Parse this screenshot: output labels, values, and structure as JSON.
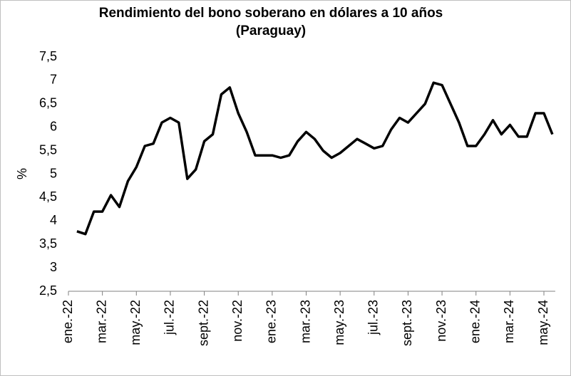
{
  "chart_data": {
    "type": "line",
    "title": [
      "Rendimiento del bono soberano en dólares a 10 años",
      "(Paraguay)"
    ],
    "y_label": "%",
    "categories": [
      "ene.-22",
      null,
      null,
      null,
      "mar.-22",
      null,
      null,
      null,
      "may.-22",
      null,
      null,
      null,
      "jul.-22",
      null,
      null,
      null,
      "sept.-22",
      null,
      null,
      null,
      "nov.-22",
      null,
      null,
      null,
      "ene.-23",
      null,
      null,
      null,
      "mar.-23",
      null,
      null,
      null,
      "may.-23",
      null,
      null,
      null,
      "jul.-23",
      null,
      null,
      null,
      "sept.-23",
      null,
      null,
      null,
      "nov.-23",
      null,
      null,
      null,
      "ene.-24",
      null,
      null,
      null,
      "mar.-24",
      null,
      null,
      null,
      "may.-24",
      null
    ],
    "series": [
      {
        "name": "Paraguay",
        "color": "#000000",
        "values": [
          null,
          3.78,
          3.72,
          4.2,
          4.2,
          4.55,
          4.3,
          4.85,
          5.15,
          5.6,
          5.65,
          6.1,
          6.2,
          6.1,
          4.9,
          5.1,
          5.7,
          5.85,
          6.7,
          6.85,
          6.3,
          5.9,
          5.4,
          5.4,
          5.4,
          5.35,
          5.4,
          5.7,
          5.9,
          5.75,
          5.5,
          5.35,
          5.45,
          5.6,
          5.75,
          5.65,
          5.55,
          5.6,
          5.95,
          6.2,
          6.1,
          6.3,
          6.5,
          6.95,
          6.9,
          6.5,
          6.1,
          5.6,
          5.6,
          5.85,
          6.15,
          5.85,
          6.05,
          5.8,
          5.8,
          6.3,
          6.3,
          5.85
        ]
      }
    ],
    "ylim": [
      2.5,
      7.5
    ],
    "yticks": [
      {
        "value": 2.5,
        "label": "2,5"
      },
      3,
      {
        "value": 3.5,
        "label": "3,5"
      },
      4,
      {
        "value": 4.5,
        "label": "4,5"
      },
      5,
      {
        "value": 5.5,
        "label": "5,5"
      },
      6,
      {
        "value": 6.5,
        "label": "6,5"
      },
      7,
      {
        "value": 7.5,
        "label": "7,5"
      }
    ],
    "grid": false
  }
}
